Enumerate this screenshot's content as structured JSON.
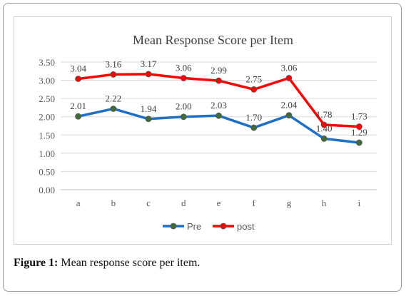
{
  "figure": {
    "caption_label": "Figure 1:",
    "caption_text": "Mean response score per item."
  },
  "chart_data": {
    "type": "line",
    "title": "Mean Response  Score per Item",
    "xlabel": "",
    "ylabel": "",
    "categories": [
      "a",
      "b",
      "c",
      "d",
      "e",
      "f",
      "g",
      "h",
      "i"
    ],
    "ylim": [
      0,
      3.5
    ],
    "yticks": [
      "0.00",
      "0.50",
      "1.00",
      "1.50",
      "2.00",
      "2.50",
      "3.00",
      "3.50"
    ],
    "grid": true,
    "legend_position": "bottom",
    "series": [
      {
        "name": "Pre",
        "color": "#1f6fc5",
        "marker": "#3f6b3a",
        "values": [
          2.01,
          2.22,
          1.94,
          2.0,
          2.03,
          1.7,
          2.04,
          1.4,
          1.29
        ],
        "labels": [
          "2.01",
          "2.22",
          "1.94",
          "2.00",
          "2.03",
          "1.70",
          "2.04",
          "1.40",
          "1.29"
        ]
      },
      {
        "name": "post",
        "color": "#ff0000",
        "marker": "#ff0000",
        "values": [
          3.04,
          3.16,
          3.17,
          3.06,
          2.99,
          2.75,
          3.06,
          1.78,
          1.73
        ],
        "labels": [
          "3.04",
          "3.16",
          "3.17",
          "3.06",
          "2.99",
          "2.75",
          "3.06",
          "1.78",
          "1.73"
        ]
      }
    ]
  }
}
